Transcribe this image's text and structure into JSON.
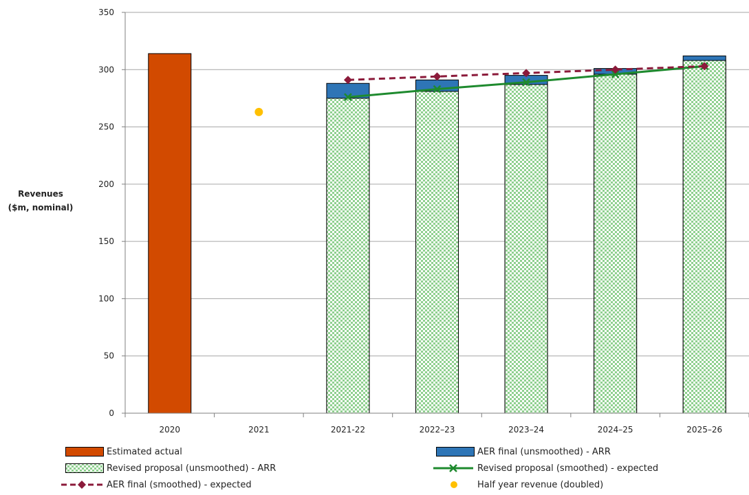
{
  "chart_data": {
    "type": "bar",
    "title": "",
    "ylabel_lines": [
      "Revenues",
      "($m, nominal)"
    ],
    "xlabel": "",
    "ylim": [
      0,
      350
    ],
    "yticks": [
      0,
      50,
      100,
      150,
      200,
      250,
      300,
      350
    ],
    "grid": true,
    "legend_position": "bottom",
    "categories": [
      "2020",
      "2021",
      "2021-22",
      "2022–23",
      "2023–24",
      "2024–25",
      "2025–26"
    ],
    "series": [
      {
        "name": "Estimated actual",
        "kind": "bar",
        "color": "#d24a00",
        "values": [
          314,
          null,
          null,
          null,
          null,
          null,
          null
        ]
      },
      {
        "name": "Revised proposal (unsmoothed) - ARR",
        "kind": "bar",
        "color": "#8fd08f",
        "pattern": "checker",
        "values": [
          null,
          null,
          275,
          281,
          287,
          296,
          308
        ]
      },
      {
        "name": "AER final (unsmoothed) - ARR",
        "kind": "bar",
        "color": "#2e75b6",
        "values": [
          null,
          null,
          288,
          291,
          295,
          301,
          312
        ]
      },
      {
        "name": "Revised proposal (smoothed) - expected",
        "kind": "line",
        "color": "#1e8a2e",
        "marker": "x",
        "values": [
          null,
          null,
          276,
          283,
          289,
          296,
          303
        ]
      },
      {
        "name": "AER final (smoothed) - expected",
        "kind": "line",
        "color": "#8b1a3a",
        "marker": "diamond",
        "dashed": true,
        "values": [
          null,
          null,
          291,
          294,
          297,
          300,
          303
        ]
      },
      {
        "name": "Half year revenue (doubled)",
        "kind": "point",
        "color": "#ffc000",
        "marker": "circle",
        "values": [
          null,
          263,
          null,
          null,
          null,
          null,
          null
        ]
      }
    ]
  }
}
